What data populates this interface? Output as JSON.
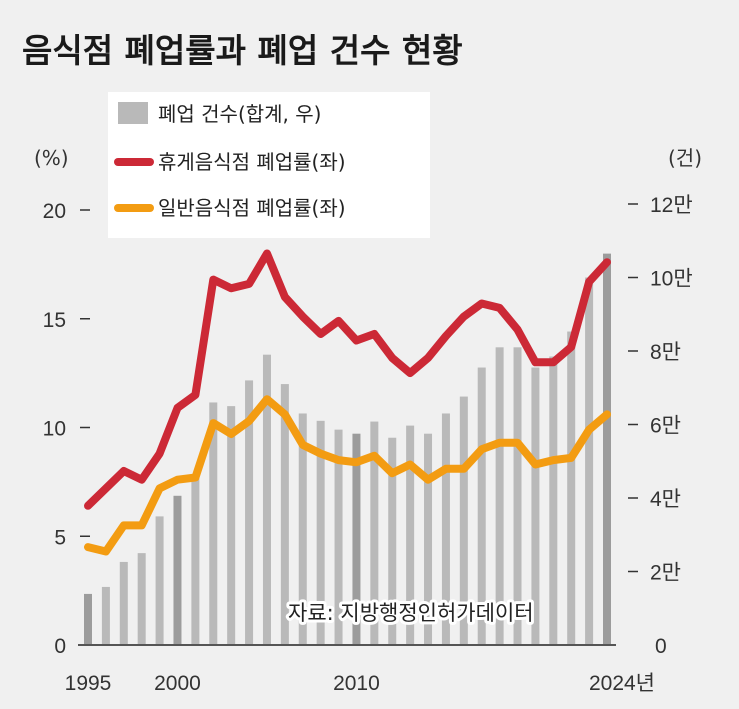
{
  "chart_data": {
    "type": "bar+line",
    "title": "음식점 폐업률과 폐업 건수 현황",
    "x": [
      1995,
      1996,
      1997,
      1998,
      1999,
      2000,
      2001,
      2002,
      2003,
      2004,
      2005,
      2006,
      2007,
      2008,
      2009,
      2010,
      2011,
      2012,
      2013,
      2014,
      2015,
      2016,
      2017,
      2018,
      2019,
      2020,
      2021,
      2022,
      2023,
      2024
    ],
    "x_tick_labels": [
      {
        "year": 1995,
        "label": "1995"
      },
      {
        "year": 2000,
        "label": "2000"
      },
      {
        "year": 2010,
        "label": "2010"
      },
      {
        "year": 2024,
        "label": "2024년"
      }
    ],
    "highlight_years": [
      1995,
      2000,
      2010,
      2024
    ],
    "left_axis": {
      "unit_label": "(%)",
      "ylim": [
        0,
        20
      ],
      "ticks": [
        {
          "v": 0,
          "label": "0"
        },
        {
          "v": 5,
          "label": "5"
        },
        {
          "v": 10,
          "label": "10"
        },
        {
          "v": 15,
          "label": "15"
        },
        {
          "v": 20,
          "label": "20"
        }
      ]
    },
    "right_axis": {
      "unit_label": "(건)",
      "ylim": [
        0,
        120000
      ],
      "ticks": [
        {
          "v": 0,
          "label": "0"
        },
        {
          "v": 20000,
          "label": "2만"
        },
        {
          "v": 40000,
          "label": "4만"
        },
        {
          "v": 60000,
          "label": "6만"
        },
        {
          "v": 80000,
          "label": "8만"
        },
        {
          "v": 100000,
          "label": "10만"
        },
        {
          "v": 120000,
          "label": "12만"
        }
      ]
    },
    "series": [
      {
        "name": "폐업 건수(합계, 우)",
        "type": "bar",
        "axis": "right",
        "color": "#b9b9b9",
        "highlight_color": "#9c9c9c",
        "values": [
          13900,
          15800,
          22600,
          25000,
          35000,
          40600,
          45500,
          66000,
          65000,
          72000,
          79000,
          71000,
          63000,
          61000,
          58600,
          57500,
          60800,
          56400,
          59700,
          57500,
          63000,
          67600,
          75500,
          81000,
          81000,
          75500,
          78500,
          85300,
          100000,
          106500
        ]
      },
      {
        "name": "휴게음식점 폐업률(좌)",
        "type": "line",
        "axis": "left",
        "color": "#cc2936",
        "values": [
          6.4,
          7.2,
          8.0,
          7.6,
          8.8,
          10.9,
          11.5,
          16.8,
          16.4,
          16.6,
          18.0,
          16.0,
          15.1,
          14.3,
          14.9,
          14.0,
          14.3,
          13.2,
          12.5,
          13.2,
          14.2,
          15.1,
          15.7,
          15.5,
          14.5,
          13.0,
          13.0,
          13.7,
          16.7,
          17.6
        ]
      },
      {
        "name": "일반음식점 폐업률(좌)",
        "type": "line",
        "axis": "left",
        "color": "#f39c12",
        "values": [
          4.5,
          4.3,
          5.5,
          5.5,
          7.2,
          7.6,
          7.7,
          10.2,
          9.7,
          10.3,
          11.3,
          10.6,
          9.2,
          8.8,
          8.5,
          8.4,
          8.7,
          7.9,
          8.3,
          7.6,
          8.1,
          8.1,
          9.0,
          9.3,
          9.3,
          8.3,
          8.5,
          8.6,
          9.9,
          10.6
        ]
      }
    ],
    "legend_placement": "top-left",
    "source": "자료: 지방행정인허가데이터"
  }
}
